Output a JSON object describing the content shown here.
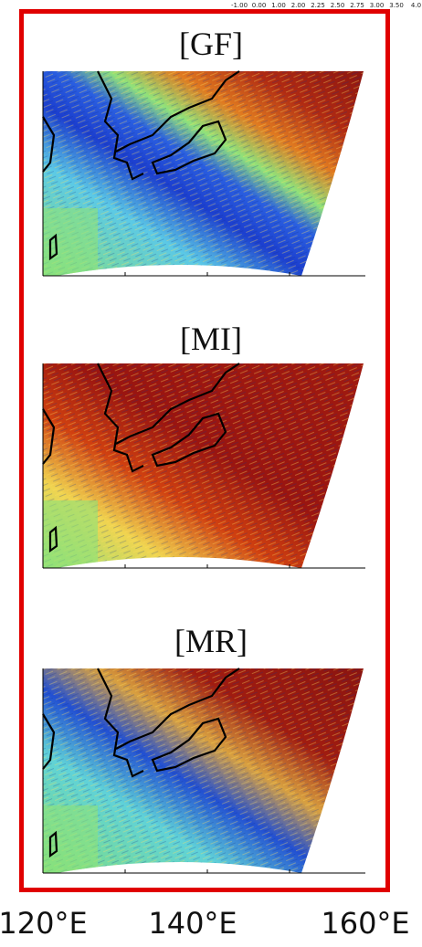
{
  "colorbar": {
    "labels": [
      "-1.00",
      "0.00",
      "1.00",
      "2.00",
      "2.25",
      "2.50",
      "2.75",
      "3.00",
      "3.50",
      "4.0"
    ]
  },
  "panels": [
    {
      "title": "[GF]"
    },
    {
      "title": "[MI]"
    },
    {
      "title": "[MR]"
    }
  ],
  "x_axis": {
    "labels": [
      "120°E",
      "140°E",
      "160°E"
    ]
  }
}
